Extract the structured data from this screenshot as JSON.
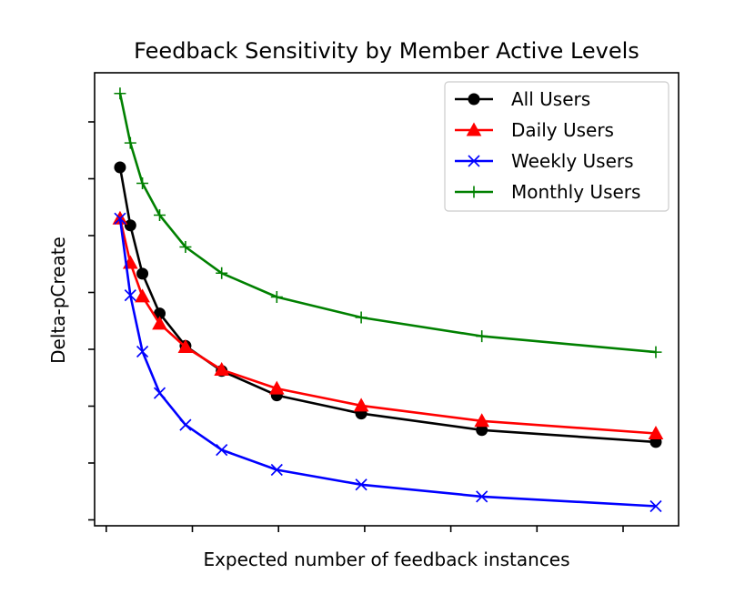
{
  "chart_data": {
    "type": "line",
    "title": "Feedback Sensitivity by Member Active Levels",
    "xlabel": "Expected number of feedback instances",
    "ylabel": "Delta-pCreate",
    "xlim": [
      0,
      32
    ],
    "ylim": [
      0,
      7.5
    ],
    "x_ticks": [
      0,
      5,
      10,
      15,
      20,
      25,
      30
    ],
    "y_ticks": [
      0,
      1,
      2,
      3,
      4,
      5,
      6,
      7
    ],
    "tick_labels_visible": false,
    "grid": false,
    "legend_position": "top-right",
    "x": [
      0.8,
      1.4,
      2.1,
      3.1,
      4.6,
      6.7,
      9.9,
      14.8,
      21.8,
      31.9
    ],
    "series": [
      {
        "name": "All Users",
        "color": "#000000",
        "marker": "circle",
        "values": [
          6.2,
          5.18,
          4.33,
          3.63,
          3.06,
          2.62,
          2.19,
          1.87,
          1.58,
          1.37
        ]
      },
      {
        "name": "Daily Users",
        "color": "#ff0000",
        "marker": "triangle",
        "values": [
          5.3,
          4.52,
          3.93,
          3.45,
          3.04,
          2.64,
          2.31,
          2.01,
          1.74,
          1.52
        ]
      },
      {
        "name": "Weekly Users",
        "color": "#0000ff",
        "marker": "x",
        "values": [
          5.3,
          3.95,
          2.96,
          2.23,
          1.67,
          1.23,
          0.88,
          0.62,
          0.41,
          0.24
        ]
      },
      {
        "name": "Monthly Users",
        "color": "#008000",
        "marker": "plus",
        "values": [
          7.5,
          6.63,
          5.92,
          5.36,
          4.8,
          4.34,
          3.92,
          3.56,
          3.23,
          2.95
        ]
      }
    ]
  }
}
